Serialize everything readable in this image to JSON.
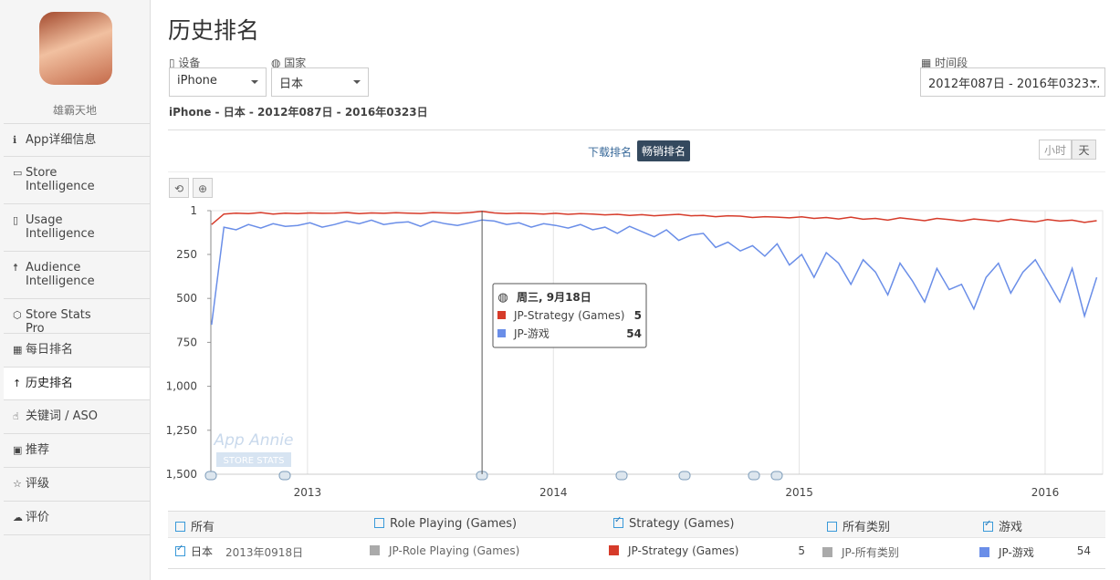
{
  "sidebar": {
    "app_name": "雄霸天地",
    "menu": [
      "App详细信息",
      "Store Intelligence",
      "Usage Intelligence",
      "Audience Intelligence",
      "Store Stats Pro",
      "每日排名",
      "历史排名",
      "关键词 / ASO",
      "推荐",
      "评级",
      "评价"
    ]
  },
  "header": {
    "title": "历史排名",
    "device_label": "设备",
    "device": "iPhone",
    "country_label": "国家",
    "country": "日本",
    "period_label": "时间段",
    "period": "2012年087日 - 2016年0323...",
    "summary": "iPhone - 日本 - 2012年087日 - 2016年0323日",
    "tabs": [
      "下载排名",
      "畅销排名"
    ],
    "granularity": [
      "小时",
      "天"
    ],
    "watermark": "App Annie",
    "watermark_sub": "STORE STATS"
  },
  "chart_data": {
    "type": "line",
    "x": [
      2012.61,
      2012.66,
      2012.71,
      2012.76,
      2012.81,
      2012.86,
      2012.91,
      2012.96,
      2013.01,
      2013.06,
      2013.11,
      2013.16,
      2013.21,
      2013.26,
      2013.31,
      2013.36,
      2013.41,
      2013.46,
      2013.51,
      2013.56,
      2013.61,
      2013.66,
      2013.71,
      2013.76,
      2013.81,
      2013.86,
      2013.91,
      2013.96,
      2014.01,
      2014.06,
      2014.11,
      2014.16,
      2014.21,
      2014.26,
      2014.31,
      2014.36,
      2014.41,
      2014.46,
      2014.51,
      2014.56,
      2014.61,
      2014.66,
      2014.71,
      2014.76,
      2014.81,
      2014.86,
      2014.91,
      2014.96,
      2015.01,
      2015.06,
      2015.11,
      2015.16,
      2015.21,
      2015.26,
      2015.31,
      2015.36,
      2015.41,
      2015.46,
      2015.51,
      2015.56,
      2015.61,
      2015.66,
      2015.71,
      2015.76,
      2015.81,
      2015.86,
      2015.91,
      2015.96,
      2016.01,
      2016.06,
      2016.11,
      2016.16,
      2016.21
    ],
    "series": [
      {
        "name": "JP-Strategy (Games)",
        "color": "#d63b2a",
        "values": [
          80,
          20,
          15,
          18,
          12,
          20,
          15,
          18,
          14,
          16,
          15,
          12,
          18,
          14,
          16,
          13,
          15,
          17,
          12,
          14,
          16,
          12,
          5,
          14,
          18,
          15,
          17,
          20,
          16,
          22,
          18,
          20,
          25,
          22,
          28,
          24,
          30,
          26,
          22,
          30,
          28,
          35,
          30,
          32,
          40,
          35,
          38,
          42,
          36,
          45,
          40,
          48,
          38,
          50,
          45,
          55,
          42,
          50,
          58,
          45,
          52,
          60,
          48,
          55,
          62,
          50,
          58,
          65,
          52,
          60,
          55,
          68,
          58
        ]
      },
      {
        "name": "JP-游戏",
        "color": "#6a8ee8",
        "values": [
          650,
          95,
          110,
          80,
          100,
          75,
          90,
          85,
          70,
          95,
          80,
          60,
          75,
          55,
          80,
          70,
          65,
          90,
          60,
          75,
          85,
          70,
          54,
          60,
          80,
          70,
          95,
          75,
          85,
          100,
          80,
          110,
          95,
          130,
          90,
          120,
          150,
          110,
          170,
          140,
          130,
          210,
          180,
          230,
          200,
          260,
          190,
          310,
          250,
          380,
          240,
          300,
          420,
          280,
          350,
          480,
          300,
          400,
          520,
          330,
          450,
          420,
          560,
          380,
          300,
          470,
          350,
          280,
          400,
          520,
          330,
          600,
          380
        ]
      }
    ],
    "xlim": [
      2012.607,
      2016.234
    ],
    "xticks": [
      2013,
      2014,
      2015,
      2016
    ],
    "ylim": [
      1500,
      1
    ],
    "yticks": [
      1,
      250,
      500,
      750,
      {
        "value": 1000,
        "label": "1,000"
      },
      {
        "value": 1250,
        "label": "1,250"
      },
      {
        "value": 1500,
        "label": "1,500"
      }
    ],
    "tooltip": {
      "title": "周三, 9月18日",
      "x": 2013.71
    }
  },
  "table": {
    "filters": [
      {
        "label": "所有",
        "checked": false
      },
      {
        "label": "Role Playing (Games)",
        "checked": false
      },
      {
        "label": "Strategy (Games)",
        "checked": true
      },
      {
        "label": "所有类别",
        "checked": false
      },
      {
        "label": "游戏",
        "checked": true
      }
    ],
    "country": "日本",
    "date": "2013年0918日",
    "cells": [
      {
        "name": "JP-Role Playing (Games)",
        "color": "#aaaaaa"
      },
      {
        "name": "JP-所有类别",
        "color": "#aaaaaa"
      }
    ]
  }
}
